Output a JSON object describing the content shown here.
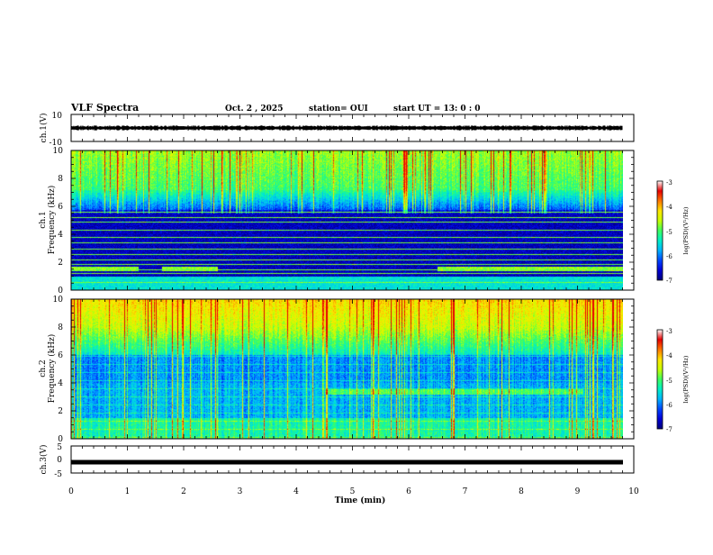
{
  "header": {
    "title": "VLF Spectra",
    "date": "Oct. 2 , 2025",
    "station": "station= OUI",
    "start": "start  UT =  13: 0  : 0"
  },
  "colors": {
    "colormap": [
      "#00007a",
      "#0000d8",
      "#0046ff",
      "#00b4ff",
      "#00f0c8",
      "#3cff60",
      "#c8ff00",
      "#ffe600",
      "#ff7800",
      "#e60000",
      "#ffffff"
    ]
  },
  "chart_data": [
    {
      "type": "line",
      "title": "",
      "ylabel": "ch.1(V)",
      "ylim": [
        -10,
        10
      ],
      "yticks": [
        "10",
        "-10"
      ],
      "xlim": [
        0,
        10
      ],
      "note": "waveform amplitude roughly +/-1.5 V around 0"
    },
    {
      "type": "heatmap",
      "ylabel_top": "ch.1",
      "ylabel": "Frequency  (kHz)",
      "ylim": [
        0,
        10
      ],
      "yticks": [
        "10",
        "8",
        "6",
        "4",
        "2",
        "0"
      ],
      "xlim": [
        0,
        10.0
      ],
      "tone_lines_khz": [
        0.6,
        1.2,
        1.5,
        1.9,
        2.2,
        2.6,
        3.0,
        3.4,
        3.8,
        4.3,
        4.9,
        5.2,
        5.6
      ],
      "colorbar": {
        "label": "log(PSD)(V²/Hz)",
        "range": [
          -7,
          -3
        ],
        "ticks": [
          "-3",
          "-4",
          "-5",
          "-6",
          "-7"
        ]
      }
    },
    {
      "type": "heatmap",
      "ylabel_top": "ch.2",
      "ylabel": "Frequency  (kHz)",
      "ylim": [
        0,
        10
      ],
      "yticks": [
        "10",
        "8",
        "6",
        "4",
        "2",
        "0"
      ],
      "xlim": [
        0,
        10.0
      ],
      "band_khz": [
        3.2,
        3.6
      ],
      "band_time_min": [
        4.5,
        9.1
      ],
      "colorbar": {
        "label": "log(PSD)(V²/Hz)",
        "range": [
          -7,
          -3
        ],
        "ticks": [
          "-3",
          "-4",
          "-5",
          "-6",
          "-7"
        ]
      }
    },
    {
      "type": "line",
      "ylabel": "ch.3(V)",
      "ylim": [
        -5,
        5
      ],
      "yticks": [
        "5",
        "0",
        "-5"
      ],
      "xlim": [
        0,
        10
      ],
      "value": -1.0
    }
  ],
  "x_axis": {
    "label": "Time  (min)",
    "ticks": [
      "0",
      "1",
      "2",
      "3",
      "4",
      "5",
      "6",
      "7",
      "8",
      "9",
      "10"
    ]
  }
}
